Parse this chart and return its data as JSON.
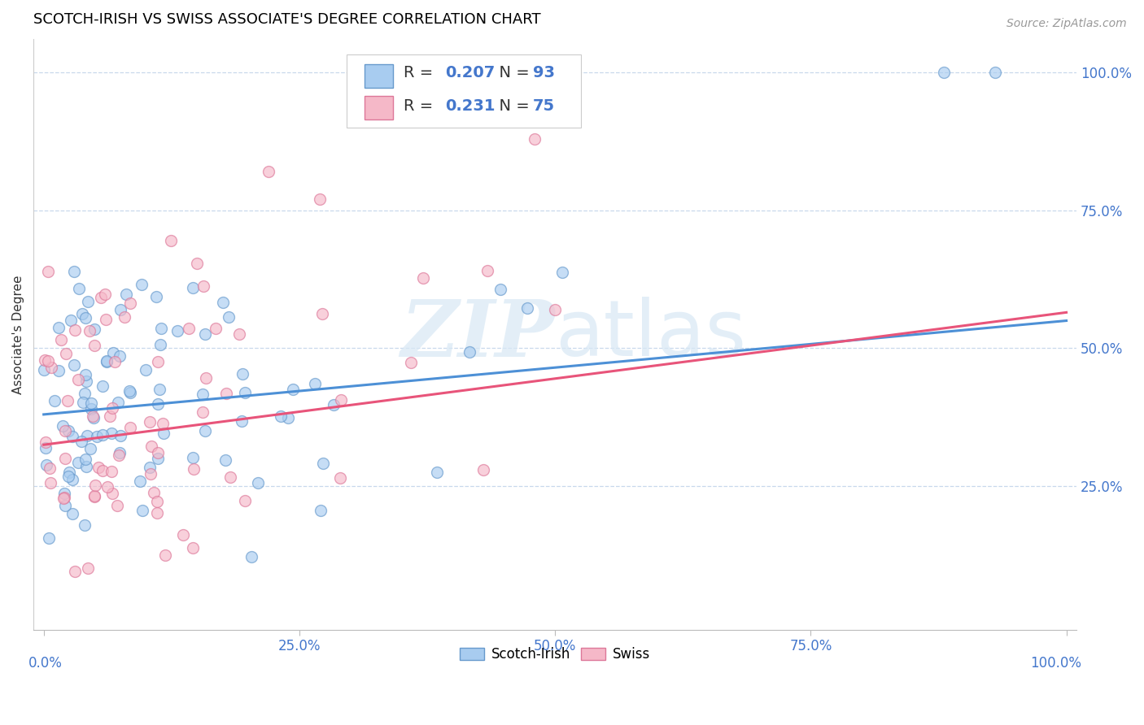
{
  "title": "SCOTCH-IRISH VS SWISS ASSOCIATE'S DEGREE CORRELATION CHART",
  "source_text": "Source: ZipAtlas.com",
  "ylabel": "Associate's Degree",
  "xlim": [
    -0.01,
    1.01
  ],
  "ylim": [
    -0.01,
    1.06
  ],
  "xticks": [
    0.0,
    0.25,
    0.5,
    0.75,
    1.0
  ],
  "xtick_labels_inner": [
    "",
    "25.0%",
    "50.0%",
    "75.0%",
    ""
  ],
  "xtick_label_left": "0.0%",
  "xtick_label_right": "100.0%",
  "ytick_positions_right": [
    0.25,
    0.5,
    0.75,
    1.0
  ],
  "ytick_labels_right": [
    "25.0%",
    "50.0%",
    "75.0%",
    "100.0%"
  ],
  "trendline_blue_y0": 0.38,
  "trendline_blue_y1": 0.55,
  "trendline_pink_y0": 0.325,
  "trendline_pink_y1": 0.565,
  "blue_line_color": "#4D90D6",
  "pink_line_color": "#E8547A",
  "scatter_blue_face": "#A8CCF0",
  "scatter_blue_edge": "#6699CC",
  "scatter_pink_face": "#F5B8C8",
  "scatter_pink_edge": "#DD7799",
  "watermark_color": "#D8E8F5",
  "legend_text_color": "#4477CC",
  "R_blue": "0.207",
  "N_blue": "93",
  "R_pink": "0.231",
  "N_pink": "75",
  "grid_color": "#C8D8EC",
  "title_fontsize": 13,
  "axis_label_fontsize": 11,
  "tick_fontsize": 12,
  "legend_fontsize": 14,
  "source_fontsize": 10,
  "tick_color": "#4477CC",
  "scatter_size": 100,
  "scatter_alpha": 0.65,
  "scatter_lw": 1.0
}
